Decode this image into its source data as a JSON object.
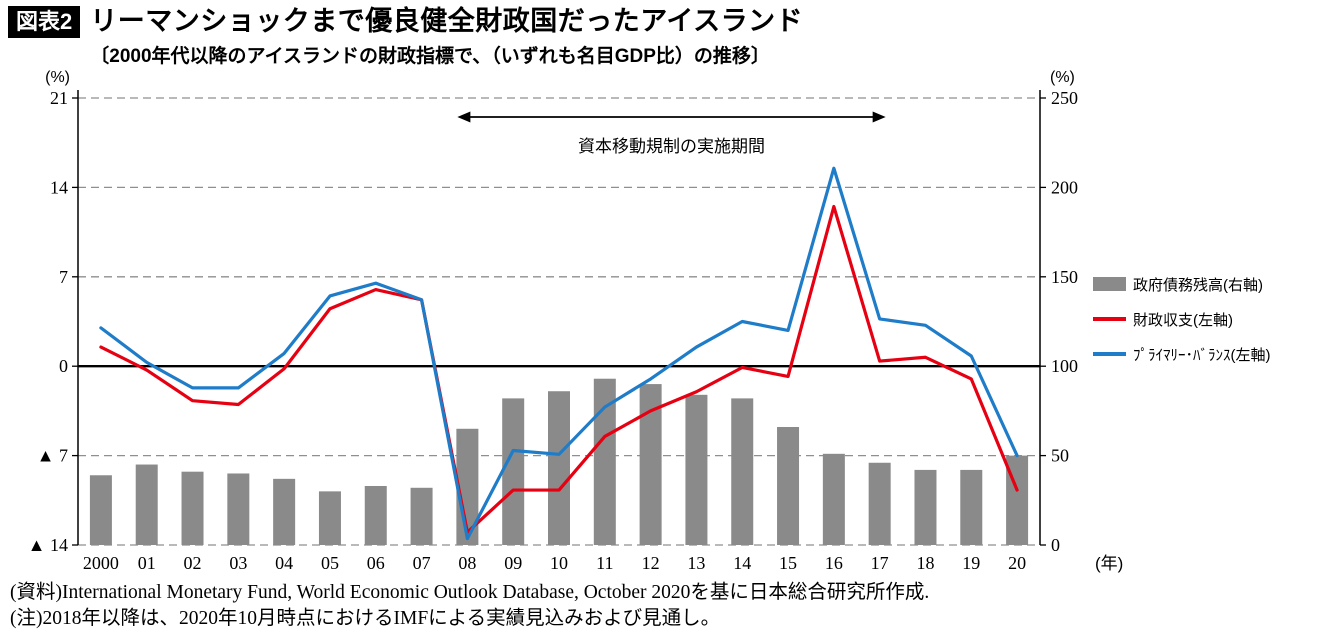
{
  "header": {
    "tag": "図表2",
    "title": "リーマンショックまで優良健全財政国だったアイスランド",
    "subtitle": "〔2000年代以降のアイスランドの財政指標で、（いずれも名目GDP比）の推移〕"
  },
  "chart_data": {
    "type": "bar+line combo",
    "categories": [
      "2000",
      "01",
      "02",
      "03",
      "04",
      "05",
      "06",
      "07",
      "08",
      "09",
      "10",
      "11",
      "12",
      "13",
      "14",
      "15",
      "16",
      "17",
      "18",
      "19",
      "20"
    ],
    "x_axis_unit": "(年)",
    "left_axis": {
      "label": "(%)",
      "min": -14,
      "max": 21,
      "tick_values": [
        21,
        14,
        7,
        0,
        -7,
        -14
      ],
      "tick_labels": [
        "21",
        "14",
        "7",
        "0",
        "▲ 7",
        "▲ 14"
      ]
    },
    "right_axis": {
      "label": "(%)",
      "min": 0,
      "max": 250,
      "tick_values": [
        250,
        200,
        150,
        100,
        50,
        0
      ],
      "tick_labels": [
        "250",
        "200",
        "150",
        "100",
        "50",
        "0"
      ]
    },
    "annotation": {
      "text": "資本移動規制の実施期間",
      "from": "08",
      "to": "17"
    },
    "series": [
      {
        "name": "政府債務残高(右軸)",
        "type": "bar",
        "axis": "right",
        "color": "#8a8a8a",
        "values": [
          39,
          45,
          41,
          40,
          37,
          30,
          33,
          32,
          65,
          82,
          86,
          93,
          90,
          84,
          82,
          66,
          51,
          46,
          42,
          42,
          50
        ]
      },
      {
        "name": "財政収支(左軸)",
        "type": "line",
        "axis": "left",
        "color": "#e60012",
        "values": [
          1.5,
          -0.3,
          -2.7,
          -3.0,
          -0.2,
          4.5,
          6.0,
          5.2,
          -13.0,
          -9.7,
          -9.7,
          -5.5,
          -3.5,
          -2.0,
          -0.1,
          -0.8,
          12.5,
          0.4,
          0.7,
          -1.0,
          -9.7
        ]
      },
      {
        "name": "ﾌﾟﾗｲﾏﾘｰ･ﾊﾞﾗﾝｽ(左軸)",
        "type": "line",
        "axis": "left",
        "color": "#1e7cc8",
        "values": [
          3.0,
          0.3,
          -1.7,
          -1.7,
          1.0,
          5.5,
          6.5,
          5.2,
          -13.5,
          -6.6,
          -6.9,
          -3.2,
          -1.0,
          1.5,
          3.5,
          2.8,
          15.5,
          3.7,
          3.2,
          0.8,
          -7.0
        ]
      }
    ],
    "grid": "dashed horizontal gridlines, solid zero line",
    "legend_position": "right"
  },
  "footer": {
    "source": "(資料)International Monetary Fund, World Economic Outlook Database, October 2020を基に日本総合研究所作成.",
    "note": "(注)2018年以降は、2020年10月時点におけるIMFによる実績見込みおよび見通し。"
  }
}
